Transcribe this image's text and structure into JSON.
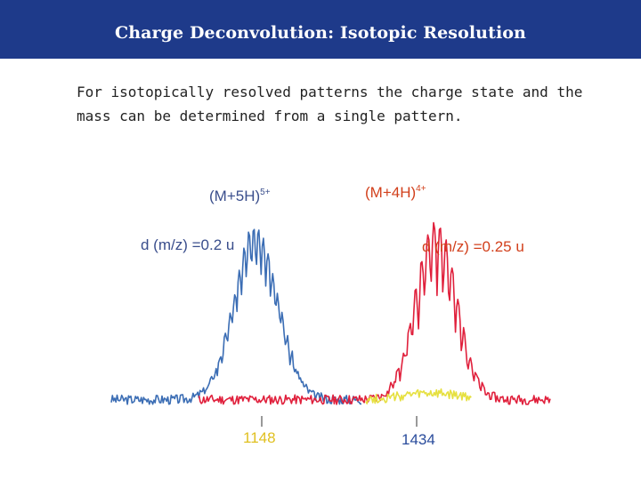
{
  "header": {
    "title": "Charge Deconvolution: Isotopic Resolution"
  },
  "body": {
    "line1": "For isotopically resolved patterns the charge state and the",
    "line2": "mass can be determined from a single pattern."
  },
  "chart_data": {
    "type": "line",
    "title": "",
    "xlabel": "",
    "ylabel": "",
    "annotations": {
      "label_5plus": {
        "base": "(M+5H)",
        "sup": "5+",
        "color": "#3a4e8c"
      },
      "label_4plus": {
        "base": "(M+4H)",
        "sup": "4+",
        "color": "#d2401c"
      },
      "spacing_5plus": {
        "text": "d (m/z) =0.2 u",
        "color": "#3a4e8c"
      },
      "spacing_4plus": {
        "text": "d (m/z) =0.25 u",
        "color": "#d2401c"
      }
    },
    "markers": [
      {
        "label": "1148",
        "color": "#e0c020"
      },
      {
        "label": "1434",
        "color": "#2a4c9c"
      }
    ],
    "series": [
      {
        "name": "(M+5H)5+ spectrum",
        "color": "#3b6db4",
        "center": 0.33,
        "width": 0.07,
        "height": 0.82,
        "teeth": 0.28,
        "period": 0.011,
        "seed": 3,
        "start": 0.0,
        "end": 0.57
      },
      {
        "name": "(M+4H)4+ spectrum",
        "color": "#e0203c",
        "center": 0.74,
        "width": 0.065,
        "height": 0.85,
        "teeth": 0.42,
        "period": 0.014,
        "seed": 11,
        "start": 0.2,
        "end": 1.0
      },
      {
        "name": "noise trace",
        "color": "#e6e040",
        "center": 0.73,
        "width": 0.09,
        "height": 0.03,
        "teeth": 0.15,
        "period": 0.012,
        "seed": 27,
        "start": 0.58,
        "end": 0.82
      }
    ]
  }
}
